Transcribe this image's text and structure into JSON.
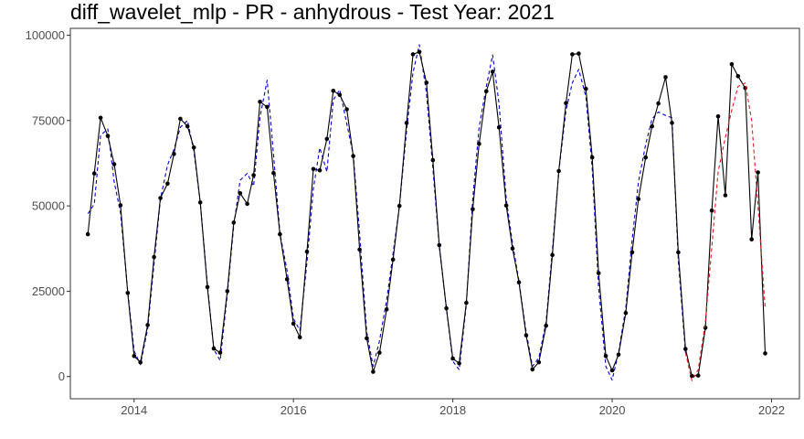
{
  "chart_data": {
    "type": "line",
    "title": "diff_wavelet_mlp - PR - anhydrous - Test Year: 2021",
    "xlabel": "",
    "ylabel": "",
    "xlim": [
      2013.2,
      2022.35
    ],
    "ylim": [
      -6500,
      102000
    ],
    "grid": false,
    "legend": "none",
    "x_ticks": [
      {
        "value": 2014,
        "label": "2014"
      },
      {
        "value": 2016,
        "label": "2016"
      },
      {
        "value": 2018,
        "label": "2018"
      },
      {
        "value": 2020,
        "label": "2020"
      },
      {
        "value": 2022,
        "label": "2022"
      }
    ],
    "y_ticks": [
      {
        "value": 0,
        "label": "0"
      },
      {
        "value": 25000,
        "label": "25000"
      },
      {
        "value": 50000,
        "label": "50000"
      },
      {
        "value": 75000,
        "label": "75000"
      },
      {
        "value": 100000,
        "label": "100000"
      }
    ],
    "series": [
      {
        "role": "actual",
        "color": "#000000",
        "dash": "solid",
        "markers": true,
        "points": [
          [
            2013.42,
            41700
          ],
          [
            2013.5,
            59500
          ],
          [
            2013.58,
            75800
          ],
          [
            2013.67,
            70500
          ],
          [
            2013.75,
            62200
          ],
          [
            2013.83,
            50200
          ],
          [
            2013.92,
            24500
          ],
          [
            2014.0,
            6000
          ],
          [
            2014.08,
            4200
          ],
          [
            2014.17,
            15100
          ],
          [
            2014.25,
            35000
          ],
          [
            2014.33,
            52300
          ],
          [
            2014.42,
            56500
          ],
          [
            2014.5,
            65200
          ],
          [
            2014.58,
            75500
          ],
          [
            2014.67,
            73300
          ],
          [
            2014.75,
            67100
          ],
          [
            2014.83,
            51000
          ],
          [
            2014.92,
            26200
          ],
          [
            2015.0,
            8200
          ],
          [
            2015.08,
            7000
          ],
          [
            2015.17,
            25000
          ],
          [
            2015.25,
            45100
          ],
          [
            2015.33,
            53700
          ],
          [
            2015.42,
            50600
          ],
          [
            2015.5,
            59000
          ],
          [
            2015.58,
            80500
          ],
          [
            2015.67,
            79000
          ],
          [
            2015.75,
            59600
          ],
          [
            2015.83,
            41700
          ],
          [
            2015.92,
            28500
          ],
          [
            2016.0,
            15500
          ],
          [
            2016.08,
            11500
          ],
          [
            2016.17,
            36600
          ],
          [
            2016.25,
            60800
          ],
          [
            2016.33,
            60400
          ],
          [
            2016.42,
            69600
          ],
          [
            2016.5,
            83700
          ],
          [
            2016.58,
            82500
          ],
          [
            2016.67,
            78300
          ],
          [
            2016.75,
            64600
          ],
          [
            2016.83,
            37200
          ],
          [
            2016.92,
            11200
          ],
          [
            2017.0,
            1400
          ],
          [
            2017.08,
            7000
          ],
          [
            2017.17,
            19700
          ],
          [
            2017.25,
            34300
          ],
          [
            2017.33,
            50000
          ],
          [
            2017.42,
            74300
          ],
          [
            2017.5,
            94400
          ],
          [
            2017.58,
            95100
          ],
          [
            2017.67,
            86100
          ],
          [
            2017.75,
            63400
          ],
          [
            2017.83,
            38500
          ],
          [
            2017.92,
            20000
          ],
          [
            2018.0,
            5300
          ],
          [
            2018.08,
            3900
          ],
          [
            2018.17,
            21600
          ],
          [
            2018.25,
            49000
          ],
          [
            2018.33,
            68200
          ],
          [
            2018.42,
            83600
          ],
          [
            2018.5,
            89300
          ],
          [
            2018.58,
            73000
          ],
          [
            2018.67,
            50100
          ],
          [
            2018.75,
            37500
          ],
          [
            2018.83,
            27600
          ],
          [
            2018.92,
            12100
          ],
          [
            2019.0,
            2100
          ],
          [
            2019.08,
            4200
          ],
          [
            2019.17,
            14900
          ],
          [
            2019.25,
            35600
          ],
          [
            2019.33,
            60200
          ],
          [
            2019.42,
            80100
          ],
          [
            2019.5,
            94400
          ],
          [
            2019.58,
            94600
          ],
          [
            2019.67,
            84300
          ],
          [
            2019.75,
            64200
          ],
          [
            2019.83,
            30300
          ],
          [
            2019.92,
            6000
          ],
          [
            2020.0,
            1800
          ],
          [
            2020.08,
            6400
          ],
          [
            2020.17,
            18600
          ],
          [
            2020.25,
            36400
          ],
          [
            2020.33,
            52000
          ],
          [
            2020.42,
            64200
          ],
          [
            2020.5,
            73300
          ],
          [
            2020.58,
            80000
          ],
          [
            2020.67,
            87700
          ],
          [
            2020.75,
            74300
          ],
          [
            2020.83,
            36400
          ],
          [
            2020.92,
            8100
          ],
          [
            2021.0,
            200
          ],
          [
            2021.08,
            300
          ],
          [
            2021.17,
            14300
          ],
          [
            2021.25,
            48600
          ],
          [
            2021.33,
            76200
          ],
          [
            2021.42,
            53100
          ],
          [
            2021.5,
            91500
          ],
          [
            2021.58,
            88000
          ],
          [
            2021.67,
            84500
          ],
          [
            2021.75,
            40200
          ],
          [
            2021.83,
            59800
          ],
          [
            2021.92,
            6800
          ]
        ]
      },
      {
        "role": "fitted",
        "color": "#0000cc",
        "dash": "dashed",
        "markers": false,
        "points": [
          [
            2013.42,
            47700
          ],
          [
            2013.5,
            50500
          ],
          [
            2013.58,
            70700
          ],
          [
            2013.67,
            72500
          ],
          [
            2013.75,
            57000
          ],
          [
            2013.83,
            48000
          ],
          [
            2013.92,
            25000
          ],
          [
            2014.0,
            7500
          ],
          [
            2014.08,
            3500
          ],
          [
            2014.17,
            14000
          ],
          [
            2014.25,
            33000
          ],
          [
            2014.33,
            52000
          ],
          [
            2014.42,
            62000
          ],
          [
            2014.5,
            66500
          ],
          [
            2014.58,
            73000
          ],
          [
            2014.67,
            75000
          ],
          [
            2014.75,
            66000
          ],
          [
            2014.83,
            51000
          ],
          [
            2014.92,
            27000
          ],
          [
            2015.0,
            8000
          ],
          [
            2015.08,
            4700
          ],
          [
            2015.17,
            24000
          ],
          [
            2015.25,
            44000
          ],
          [
            2015.33,
            57500
          ],
          [
            2015.42,
            59500
          ],
          [
            2015.5,
            55800
          ],
          [
            2015.58,
            76000
          ],
          [
            2015.67,
            86800
          ],
          [
            2015.75,
            65000
          ],
          [
            2015.83,
            42000
          ],
          [
            2015.92,
            31000
          ],
          [
            2016.0,
            17000
          ],
          [
            2016.08,
            13500
          ],
          [
            2016.17,
            33500
          ],
          [
            2016.25,
            55000
          ],
          [
            2016.33,
            67000
          ],
          [
            2016.42,
            60000
          ],
          [
            2016.5,
            81000
          ],
          [
            2016.58,
            84000
          ],
          [
            2016.67,
            74000
          ],
          [
            2016.75,
            65000
          ],
          [
            2016.83,
            42000
          ],
          [
            2016.92,
            13000
          ],
          [
            2017.0,
            3000
          ],
          [
            2017.08,
            10500
          ],
          [
            2017.17,
            22500
          ],
          [
            2017.25,
            36000
          ],
          [
            2017.33,
            50000
          ],
          [
            2017.42,
            72000
          ],
          [
            2017.5,
            89000
          ],
          [
            2017.58,
            97200
          ],
          [
            2017.67,
            83000
          ],
          [
            2017.75,
            61000
          ],
          [
            2017.83,
            38000
          ],
          [
            2017.92,
            20000
          ],
          [
            2018.0,
            4500
          ],
          [
            2018.08,
            2000
          ],
          [
            2018.17,
            21000
          ],
          [
            2018.25,
            52000
          ],
          [
            2018.33,
            73000
          ],
          [
            2018.42,
            85000
          ],
          [
            2018.5,
            94200
          ],
          [
            2018.58,
            80000
          ],
          [
            2018.67,
            52000
          ],
          [
            2018.75,
            39000
          ],
          [
            2018.83,
            28000
          ],
          [
            2018.92,
            13000
          ],
          [
            2019.0,
            3000
          ],
          [
            2019.08,
            5500
          ],
          [
            2019.17,
            16000
          ],
          [
            2019.25,
            37000
          ],
          [
            2019.33,
            60000
          ],
          [
            2019.42,
            78000
          ],
          [
            2019.5,
            86000
          ],
          [
            2019.58,
            90000
          ],
          [
            2019.67,
            82000
          ],
          [
            2019.75,
            61000
          ],
          [
            2019.83,
            26000
          ],
          [
            2019.92,
            3000
          ],
          [
            2020.0,
            -1000
          ],
          [
            2020.08,
            7000
          ],
          [
            2020.17,
            20000
          ],
          [
            2020.25,
            40000
          ],
          [
            2020.33,
            57000
          ],
          [
            2020.42,
            68000
          ],
          [
            2020.5,
            75500
          ],
          [
            2020.58,
            77500
          ],
          [
            2020.67,
            76500
          ],
          [
            2020.75,
            75800
          ],
          [
            2020.83,
            34000
          ],
          [
            2020.92,
            7000
          ]
        ]
      },
      {
        "role": "forecast",
        "color": "#e41a1c",
        "dash": "dashed",
        "markers": false,
        "points": [
          [
            2020.92,
            7000
          ],
          [
            2021.0,
            -1200
          ],
          [
            2021.08,
            2000
          ],
          [
            2021.17,
            16000
          ],
          [
            2021.25,
            38000
          ],
          [
            2021.33,
            60000
          ],
          [
            2021.42,
            70000
          ],
          [
            2021.5,
            78000
          ],
          [
            2021.58,
            85000
          ],
          [
            2021.67,
            86000
          ],
          [
            2021.75,
            75000
          ],
          [
            2021.83,
            50000
          ],
          [
            2021.92,
            20000
          ]
        ]
      }
    ]
  }
}
